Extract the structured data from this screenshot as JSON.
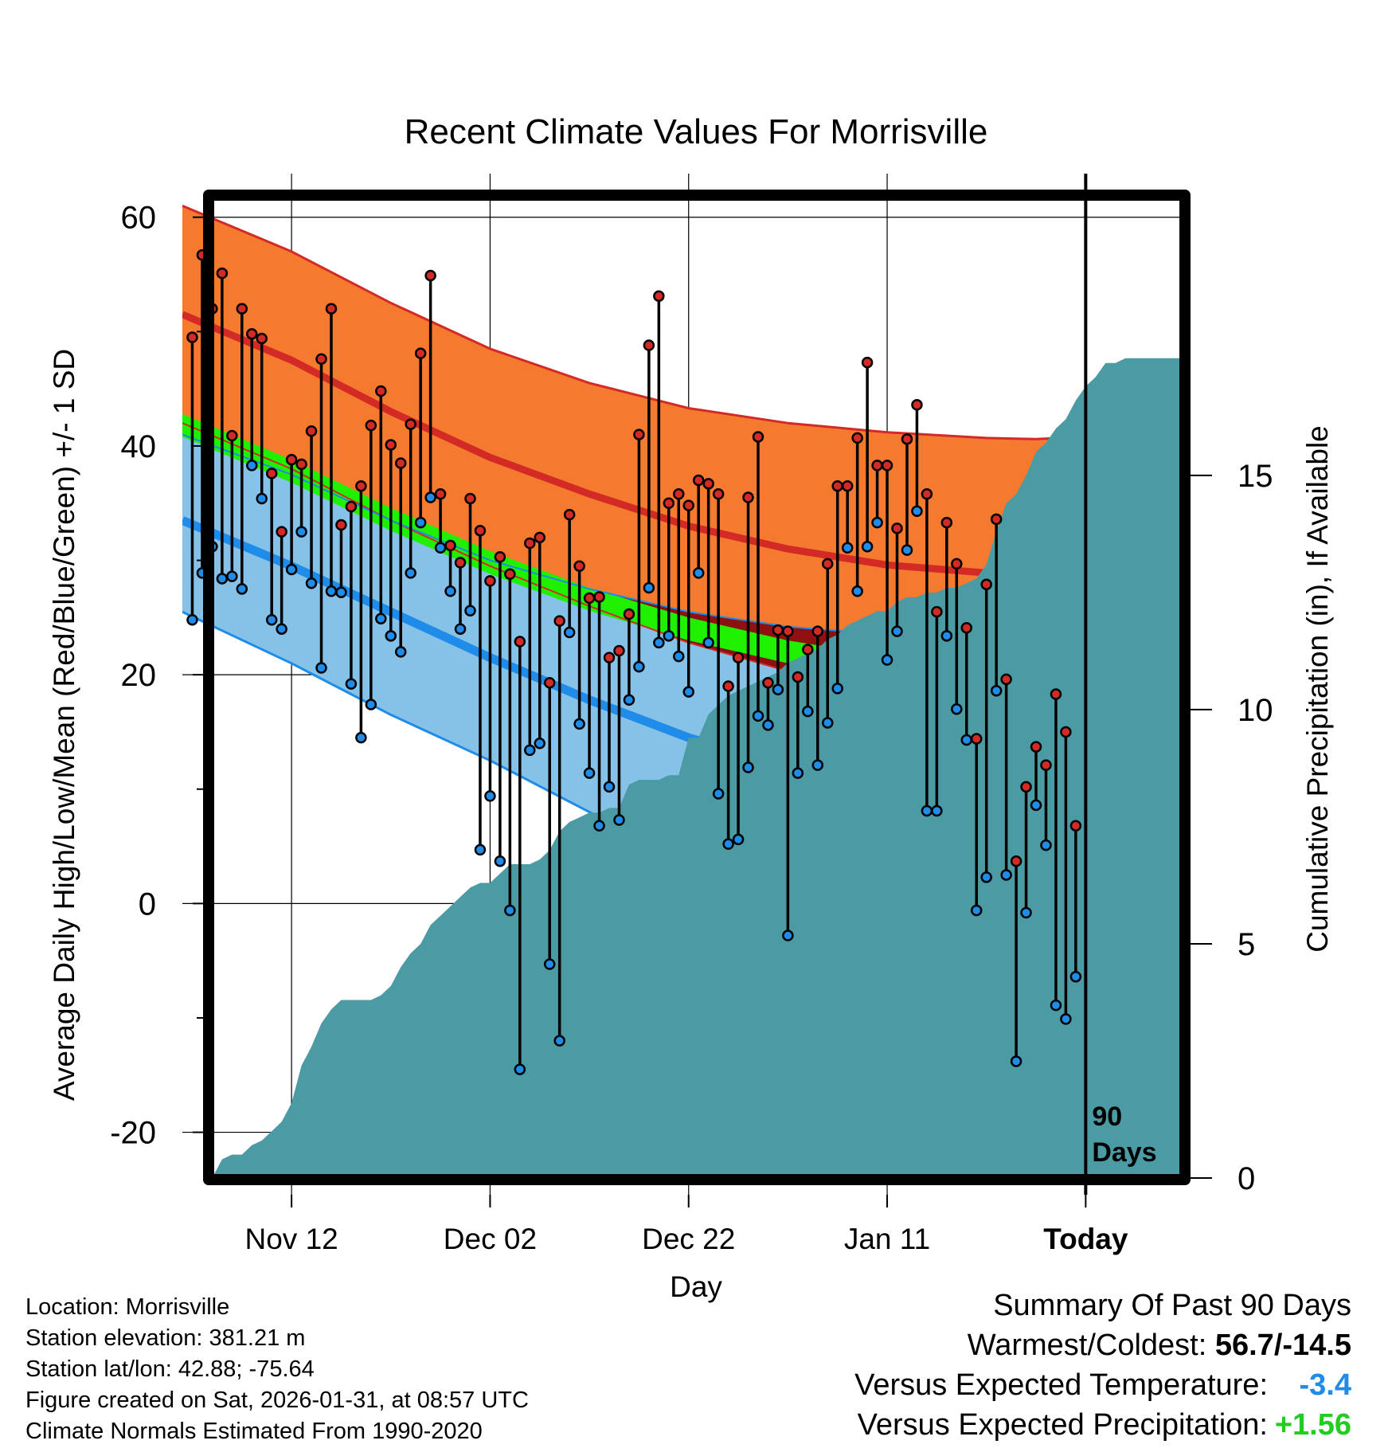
{
  "chart_data": {
    "type": "line",
    "title": "Recent Climate Values For Morrisville",
    "xlabel": "Day",
    "ylabel": "Average Daily High/Low/Mean (Red/Blue/Green) +/- 1 SD",
    "y2label": "Cumulative Precipitation (in), If Available",
    "xlim": [
      -11,
      90
    ],
    "ylim": [
      -24,
      62
    ],
    "y2lim": [
      0,
      21
    ],
    "yticks": [
      -20,
      0,
      20,
      40,
      60
    ],
    "y2ticks": [
      0,
      5,
      10,
      15
    ],
    "y_minor_ticks": [
      -10,
      10,
      30,
      50
    ],
    "xticks": [
      {
        "day": 0,
        "label": "Nov 12"
      },
      {
        "day": 20,
        "label": "Dec 02"
      },
      {
        "day": 40,
        "label": "Dec 22"
      },
      {
        "day": 60,
        "label": "Jan 11"
      },
      {
        "day": 80,
        "label": "Today"
      }
    ],
    "today_day": 80,
    "today_label_line1": "90",
    "today_label_line2": "Days",
    "normals": {
      "days": [
        -11,
        0,
        10,
        20,
        30,
        40,
        50,
        60,
        70,
        75,
        80,
        85,
        90
      ],
      "high_plus_sd": [
        61.0,
        57.0,
        52.5,
        48.5,
        45.5,
        43.3,
        42.0,
        41.2,
        40.7,
        40.6,
        40.8,
        41.2,
        42.0
      ],
      "high_mean": [
        51.5,
        47.5,
        43.0,
        39.0,
        35.8,
        33.0,
        31.0,
        29.6,
        28.9,
        29.0,
        29.5,
        30.3,
        31.5
      ],
      "high_minus_sd": [
        42.0,
        38.0,
        33.5,
        29.5,
        26.0,
        22.8,
        20.3,
        18.6,
        17.9,
        18.1,
        18.6,
        19.3,
        20.2
      ],
      "mean_upper": [
        42.8,
        38.8,
        34.6,
        30.8,
        27.6,
        25.0,
        23.0,
        21.6,
        20.8,
        20.7,
        20.9,
        21.4,
        22.2
      ],
      "mean_lower": [
        40.8,
        36.8,
        32.6,
        28.8,
        25.6,
        23.0,
        21.0,
        19.6,
        18.8,
        18.7,
        18.9,
        19.4,
        20.2
      ],
      "low_plus_sd": [
        41.0,
        37.5,
        33.5,
        30.0,
        27.5,
        25.5,
        24.2,
        23.5,
        23.3,
        23.5,
        23.8,
        24.1,
        24.7
      ],
      "low_mean": [
        33.5,
        29.5,
        25.5,
        21.5,
        17.8,
        14.5,
        12.0,
        11.0,
        10.7,
        10.9,
        11.1,
        11.5,
        12.0
      ],
      "low_minus_sd": [
        25.5,
        21.0,
        16.5,
        12.5,
        8.0,
        3.5,
        -0.5,
        -1.5,
        -1.8,
        -1.6,
        -1.0,
        -0.5,
        0.0
      ]
    },
    "series": [
      {
        "name": "Daily High",
        "color": "#d42a26",
        "values": [
          49.5,
          56.7,
          52.0,
          55.1,
          40.9,
          52.0,
          49.8,
          49.4,
          37.6,
          32.5,
          38.8,
          38.4,
          41.3,
          47.6,
          52.0,
          33.1,
          34.7,
          36.5,
          41.8,
          44.8,
          40.1,
          38.5,
          41.9,
          48.1,
          54.9,
          35.8,
          31.3,
          29.8,
          35.4,
          32.6,
          28.2,
          30.3,
          28.8,
          22.9,
          31.5,
          32.0,
          19.3,
          24.7,
          34.0,
          29.5,
          26.7,
          26.8,
          21.5,
          22.1,
          25.3,
          41.0,
          48.8,
          53.1,
          35.0,
          35.8,
          34.8,
          37.0,
          36.7,
          35.8,
          19.0,
          21.5,
          35.5,
          40.8,
          19.3,
          23.9,
          23.8,
          19.8,
          22.2,
          23.8,
          29.7,
          36.5,
          36.5,
          40.7,
          47.3,
          38.3,
          38.3,
          32.8,
          40.6,
          43.6,
          35.8,
          25.5,
          33.3,
          29.7,
          24.1,
          14.4,
          27.9,
          33.6,
          19.6,
          3.7,
          10.2,
          13.7,
          12.1,
          18.3,
          15.0,
          6.8
        ],
        "labels_note": "high values plotted at days x_start=-10 step 1"
      },
      {
        "name": "Daily Low",
        "color": "#1e8ce8",
        "values": [
          24.8,
          28.9,
          31.2,
          28.4,
          28.6,
          27.5,
          38.3,
          35.4,
          24.8,
          24.0,
          29.2,
          32.5,
          28.0,
          20.6,
          27.3,
          27.2,
          19.2,
          14.5,
          17.4,
          24.9,
          23.4,
          22.0,
          28.9,
          33.3,
          35.5,
          31.1,
          27.3,
          24.0,
          25.6,
          4.7,
          9.4,
          3.7,
          -0.6,
          -14.5,
          13.4,
          14.0,
          -5.3,
          -12.0,
          23.7,
          15.7,
          11.4,
          6.8,
          10.2,
          7.3,
          17.8,
          20.7,
          27.6,
          22.8,
          23.4,
          21.6,
          18.5,
          28.9,
          22.8,
          9.6,
          5.2,
          5.6,
          11.9,
          16.4,
          15.6,
          18.7,
          -2.8,
          11.4,
          16.8,
          12.1,
          15.8,
          18.8,
          31.1,
          27.3,
          31.2,
          33.3,
          21.3,
          23.8,
          30.9,
          34.3,
          8.1,
          8.1,
          23.4,
          17.0,
          14.3,
          -0.6,
          2.3,
          18.6,
          2.5,
          -13.8,
          -0.8,
          8.6,
          5.1,
          -8.9,
          -10.1,
          -6.4
        ]
      }
    ],
    "x_start": -10,
    "precipitation": {
      "days": [
        -8,
        -7,
        -6,
        -5,
        -4,
        -3,
        -2,
        -1,
        0,
        1,
        2,
        3,
        4,
        5,
        6,
        7,
        8,
        9,
        10,
        11,
        12,
        13,
        14,
        15,
        16,
        17,
        18,
        19,
        20,
        21,
        22,
        23,
        24,
        25,
        26,
        27,
        28,
        29,
        30,
        31,
        32,
        33,
        34,
        35,
        36,
        37,
        38,
        39,
        40,
        41,
        42,
        43,
        44,
        45,
        46,
        47,
        48,
        49,
        50,
        51,
        52,
        53,
        54,
        55,
        56,
        57,
        58,
        59,
        60,
        61,
        62,
        63,
        64,
        65,
        66,
        67,
        68,
        69,
        70,
        71,
        72,
        73,
        74,
        75,
        76,
        77,
        78,
        79,
        80,
        81,
        82,
        83,
        84,
        85,
        86,
        87,
        88,
        89,
        90
      ],
      "values": [
        0.0,
        0.4,
        0.5,
        0.5,
        0.7,
        0.8,
        1.0,
        1.2,
        1.6,
        2.4,
        2.8,
        3.3,
        3.6,
        3.8,
        3.8,
        3.8,
        3.8,
        3.9,
        4.1,
        4.5,
        4.8,
        5.0,
        5.4,
        5.6,
        5.8,
        6.0,
        6.2,
        6.3,
        6.3,
        6.5,
        6.7,
        6.7,
        6.7,
        6.8,
        7.0,
        7.4,
        7.6,
        7.7,
        7.8,
        7.8,
        7.9,
        7.9,
        8.4,
        8.5,
        8.5,
        8.5,
        8.6,
        8.6,
        9.4,
        9.4,
        9.9,
        10.1,
        10.3,
        10.4,
        10.5,
        10.6,
        10.7,
        10.8,
        11.0,
        11.1,
        11.2,
        11.3,
        11.5,
        11.6,
        11.8,
        11.9,
        12.0,
        12.1,
        12.1,
        12.3,
        12.4,
        12.4,
        12.5,
        12.5,
        12.6,
        12.6,
        12.7,
        12.8,
        13.1,
        13.8,
        14.4,
        14.6,
        15.0,
        15.5,
        15.7,
        16.0,
        16.2,
        16.6,
        16.9,
        17.1,
        17.4,
        17.4,
        17.5,
        17.5,
        17.5,
        17.5,
        17.5,
        17.5,
        17.5
      ],
      "color": "#4a9ba4"
    },
    "colors": {
      "high_band": "#f47a30",
      "high_line": "#d42a26",
      "low_band": "#86c2e8",
      "low_line": "#1e8ce8",
      "overlap_band": "#8e1010",
      "mean_band": "#1ef000"
    }
  },
  "info": {
    "location": "Location: Morrisville",
    "elevation": "Station elevation: 381.21 m",
    "latlon": "Station lat/lon: 42.88; -75.64",
    "created": "Figure created on Sat, 2026-01-31, at 08:57 UTC",
    "normals": "Climate Normals Estimated From 1990-2020"
  },
  "summary": {
    "heading": "Summary Of Past 90 Days",
    "warm_cold_label": "Warmest/Coldest: ",
    "warm_cold_value": "56.7/-14.5",
    "temp_label": "Versus Expected Temperature:",
    "temp_value": "-3.4",
    "temp_color": "#1e8ce8",
    "precip_label": "Versus Expected Precipitation:",
    "precip_value": "+1.56",
    "precip_color": "#22cc22"
  }
}
